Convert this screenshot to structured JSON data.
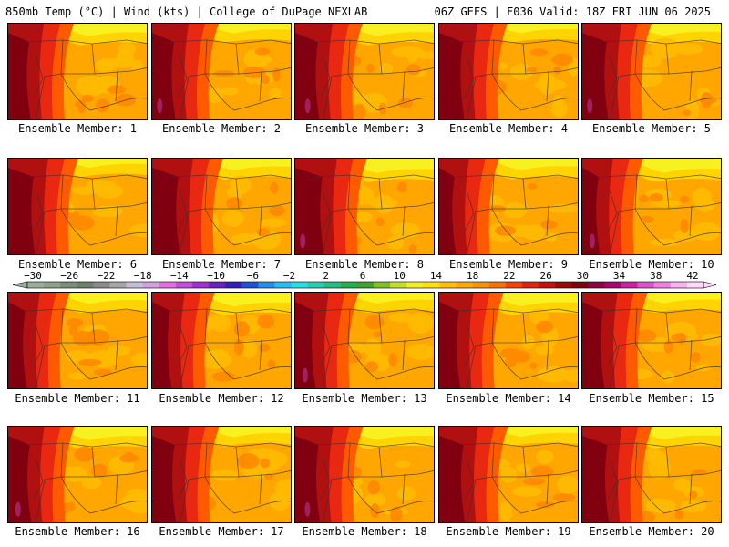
{
  "header": {
    "left": "850mb Temp (°C) | Wind (kts) | College of DuPage NEXLAB",
    "right": "06Z GEFS | F036 Valid: 18Z FRI JUN 06 2025"
  },
  "members": [
    "Ensemble Member: 1",
    "Ensemble Member: 2",
    "Ensemble Member: 3",
    "Ensemble Member: 4",
    "Ensemble Member: 5",
    "Ensemble Member: 6",
    "Ensemble Member: 7",
    "Ensemble Member: 8",
    "Ensemble Member: 9",
    "Ensemble Member: 10",
    "Ensemble Member: 11",
    "Ensemble Member: 12",
    "Ensemble Member: 13",
    "Ensemble Member: 14",
    "Ensemble Member: 15",
    "Ensemble Member: 16",
    "Ensemble Member: 17",
    "Ensemble Member: 18",
    "Ensemble Member: 19",
    "Ensemble Member: 20"
  ],
  "colorbar": {
    "labels": [
      "-30",
      "-26",
      "-22",
      "-18",
      "-14",
      "-10",
      "-6",
      "-2",
      "2",
      "6",
      "10",
      "14",
      "18",
      "22",
      "26",
      "30",
      "34",
      "38",
      "42"
    ],
    "colors": [
      "#9aae9a",
      "#8ca08c",
      "#7a8f7a",
      "#6f7f6f",
      "#8a8a8a",
      "#a6a6a6",
      "#c0c0d8",
      "#d6a0e0",
      "#e070e0",
      "#c050d8",
      "#a030d0",
      "#6820c8",
      "#3020c0",
      "#2050e0",
      "#2090f0",
      "#20c0f0",
      "#20e0e0",
      "#20d0b0",
      "#20c080",
      "#20b050",
      "#40a030",
      "#80c020",
      "#c0e020",
      "#f0f020",
      "#ffe000",
      "#ffc000",
      "#ffa800",
      "#ff9000",
      "#ff7000",
      "#ff4000",
      "#e82010",
      "#c81010",
      "#a00808",
      "#800010",
      "#900040",
      "#b00070",
      "#d020a0",
      "#e050c8",
      "#f080e0",
      "#f8b0f0",
      "#ffd8ff"
    ]
  },
  "map_colors": {
    "yellow": "#f8f020",
    "yellow_orange": "#ffd400",
    "light_orange": "#ffbb00",
    "orange": "#ffa600",
    "dark_orange": "#ff8a00",
    "red_orange": "#ff5a00",
    "red": "#e82810",
    "dark_red": "#b01010",
    "maroon": "#800010",
    "purple": "#a02060"
  }
}
